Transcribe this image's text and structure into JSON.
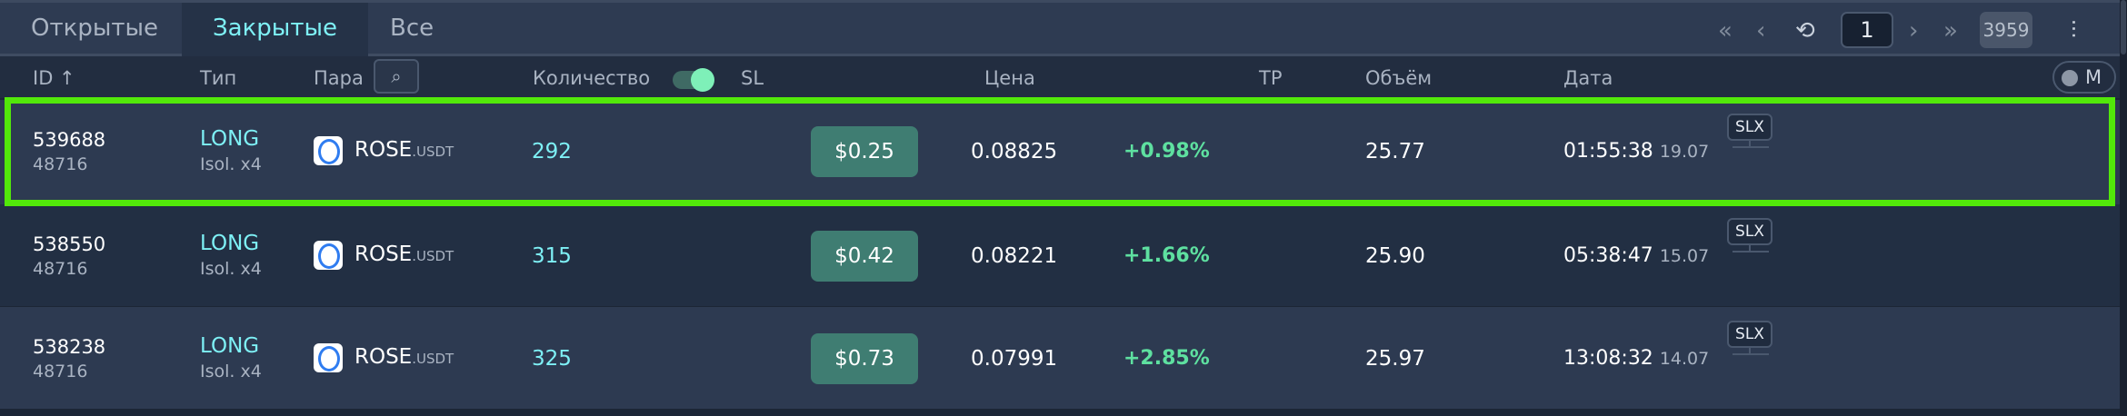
{
  "tabs": [
    {
      "label": "Открытые"
    },
    {
      "label": "Закрытые",
      "active": true
    },
    {
      "label": "Все"
    }
  ],
  "pager": {
    "first_icon": "double-chevron-left-icon",
    "prev_icon": "chevron-left-icon",
    "refresh_icon": "refresh-icon",
    "page": "1",
    "next_icon": "chevron-right-icon",
    "last_icon": "double-chevron-right-icon",
    "total": "3959",
    "settings_icon": "sliders-icon"
  },
  "header": {
    "id": "ID ↑",
    "type": "Тип",
    "pair": "Пара",
    "qty": "Количество",
    "sl": "SL",
    "price": "Цена",
    "tp": "TP",
    "volume": "Объём",
    "date": "Дата",
    "m_toggle": "M"
  },
  "rows": [
    {
      "id": "539688",
      "sub": "48716",
      "type": "LONG",
      "margin": "Isol. x4",
      "pair": "ROSE",
      "quote": ".USDT",
      "qty": "292",
      "sl": "$0.25",
      "price": "0.08825",
      "pct": "+0.98%",
      "volume": "25.77",
      "time": "01:55:38",
      "day": "19.07",
      "badge": "SLX"
    },
    {
      "id": "538550",
      "sub": "48716",
      "type": "LONG",
      "margin": "Isol. x4",
      "pair": "ROSE",
      "quote": ".USDT",
      "qty": "315",
      "sl": "$0.42",
      "price": "0.08221",
      "pct": "+1.66%",
      "volume": "25.90",
      "time": "05:38:47",
      "day": "15.07",
      "badge": "SLX"
    },
    {
      "id": "538238",
      "sub": "48716",
      "type": "LONG",
      "margin": "Isol. x4",
      "pair": "ROSE",
      "quote": ".USDT",
      "qty": "325",
      "sl": "$0.73",
      "price": "0.07991",
      "pct": "+2.85%",
      "volume": "25.97",
      "time": "13:08:32",
      "day": "14.07",
      "badge": "SLX"
    }
  ],
  "colors": {
    "accent": "#7ef0f5",
    "positive": "#5ee0a0",
    "sl_button": "#3f7d72",
    "highlight": "#52e80a"
  }
}
